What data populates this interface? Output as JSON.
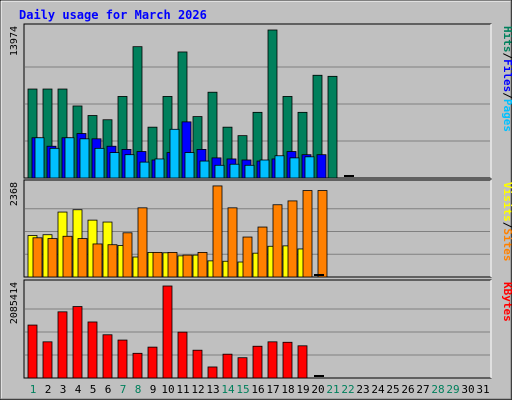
{
  "chart_data": {
    "type": "bar",
    "title": "Daily usage for March 2026",
    "days": [
      "1",
      "2",
      "3",
      "4",
      "5",
      "6",
      "7",
      "8",
      "9",
      "10",
      "11",
      "12",
      "13",
      "14",
      "15",
      "16",
      "17",
      "18",
      "19",
      "20",
      "21",
      "22",
      "23",
      "24",
      "25",
      "26",
      "27",
      "28",
      "29",
      "30",
      "31"
    ],
    "weekend_days": [
      "1",
      "7",
      "8",
      "14",
      "15",
      "21",
      "22",
      "28",
      "29"
    ],
    "panels": [
      {
        "id": "hits",
        "ymax_label": "13974",
        "ymax": 13974,
        "legend": [
          "Hits",
          "Files",
          "Pages"
        ],
        "series": [
          {
            "name": "Hits",
            "color": "#00805c",
            "values": [
              8400,
              8400,
              8400,
              6800,
              5900,
              5500,
              7700,
              12400,
              4800,
              7700,
              11900,
              5800,
              8100,
              4800,
              4000,
              6200,
              13974,
              7700,
              6200,
              9700,
              9600
            ]
          },
          {
            "name": "Files",
            "color": "#0000ff",
            "values": [
              3800,
              3000,
              3800,
              4200,
              3700,
              3000,
              2700,
              2500,
              1700,
              2400,
              5300,
              2700,
              1900,
              1800,
              1700,
              1600,
              1800,
              2500,
              2200,
              2200
            ]
          },
          {
            "name": "Pages",
            "color": "#00c0ff",
            "values": [
              3800,
              2800,
              3800,
              3700,
              2800,
              2400,
              2200,
              1500,
              1800,
              4600,
              2400,
              1600,
              1200,
              1300,
              1200,
              1700,
              2100,
              1900,
              2000
            ]
          }
        ]
      },
      {
        "id": "visits",
        "ymax_label": "2368",
        "ymax": 2368,
        "legend": [
          "Visits",
          "Sites"
        ],
        "series": [
          {
            "name": "Visits",
            "color": "#ffff00",
            "values": [
              1080,
              1100,
              1690,
              1750,
              1480,
              1430,
              820,
              520,
              640,
              630,
              550,
              570,
              420,
              410,
              390,
              620,
              800,
              810,
              730
            ]
          },
          {
            "name": "Sites",
            "color": "#ff8000",
            "values": [
              1020,
              1000,
              1060,
              1000,
              860,
              840,
              1150,
              1800,
              640,
              640,
              570,
              640,
              2370,
              1800,
              1040,
              1300,
              1880,
              1980,
              2250,
              2250
            ]
          }
        ]
      },
      {
        "id": "kbytes",
        "ymax_label": "2085414",
        "ymax": 2085414,
        "legend": [
          "KBytes"
        ],
        "series": [
          {
            "name": "KBytes",
            "color": "#ff0000",
            "values": [
              1200000,
              820000,
              1500000,
              1620000,
              1270000,
              980000,
              860000,
              560000,
              700000,
              2085414,
              1040000,
              630000,
              250000,
              540000,
              460000,
              720000,
              820000,
              810000,
              730000
            ]
          }
        ]
      }
    ]
  },
  "colors": {
    "background": "#c0c0c0",
    "plot_background": "#c0c0c0",
    "title_color": "#0000ff",
    "weekday_label": "#00805c",
    "weekend_label": "#00805c",
    "axis_label": "#000000"
  }
}
